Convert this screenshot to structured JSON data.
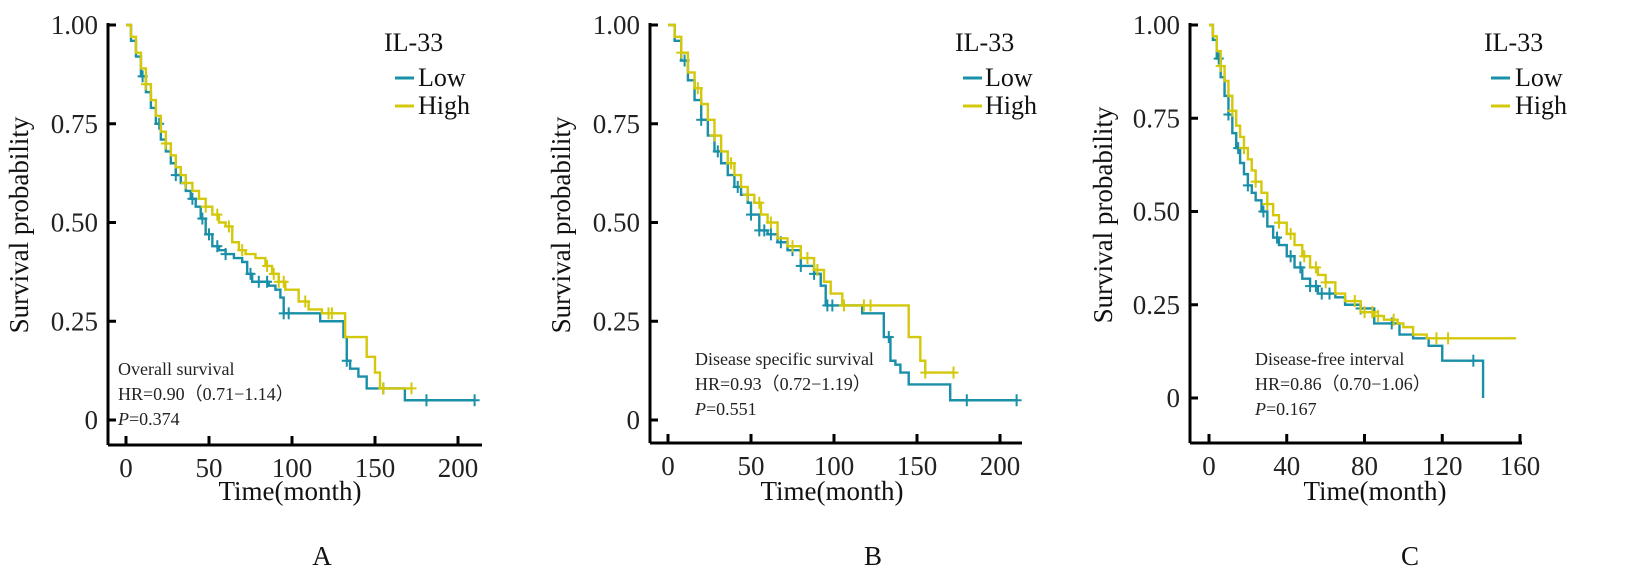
{
  "colors": {
    "low": "#1a8fa8",
    "high": "#d4c80a",
    "axis": "#000000",
    "text": "#111111"
  },
  "chart_data": [
    {
      "panel": "A",
      "type": "line",
      "subtype": "kaplan-meier",
      "title": "Overall survival",
      "xlabel": "Time(month)",
      "ylabel": "Survival probability",
      "xlim": [
        -10,
        212
      ],
      "ylim": [
        0,
        1
      ],
      "xticks": [
        0,
        50,
        100,
        150,
        200
      ],
      "xtick_labels": [
        "0",
        "50",
        "100",
        "150",
        "200"
      ],
      "yticks": [
        0,
        0.25,
        0.5,
        0.75,
        1.0
      ],
      "ytick_labels": [
        "0",
        "0.25",
        "0.50",
        "0.75",
        "1.00"
      ],
      "legend": {
        "title": "IL-33",
        "entries": [
          "Low",
          "High"
        ],
        "position": "top-right"
      },
      "annotation": {
        "line1": "Overall survival",
        "hr": "HR=0.90（0.71−1.14）",
        "p_label": "P",
        "p_value": "=0.374"
      },
      "grid": false,
      "series": [
        {
          "name": "Low",
          "x": [
            0,
            3,
            6,
            9,
            12,
            15,
            18,
            21,
            24,
            27,
            30,
            33,
            36,
            39,
            42,
            45,
            48,
            52,
            56,
            60,
            65,
            70,
            73,
            76,
            80,
            86,
            90,
            93,
            95,
            97,
            110,
            117,
            120,
            131,
            133,
            135,
            140,
            145,
            150,
            168,
            180,
            210
          ],
          "y": [
            1.0,
            0.96,
            0.92,
            0.87,
            0.83,
            0.79,
            0.75,
            0.71,
            0.68,
            0.65,
            0.62,
            0.6,
            0.58,
            0.56,
            0.54,
            0.51,
            0.47,
            0.44,
            0.43,
            0.42,
            0.41,
            0.4,
            0.37,
            0.35,
            0.35,
            0.34,
            0.33,
            0.31,
            0.27,
            0.27,
            0.27,
            0.25,
            0.25,
            0.21,
            0.15,
            0.13,
            0.11,
            0.08,
            0.08,
            0.05,
            0.05,
            0.05
          ],
          "censor_x": [
            10,
            20,
            30,
            40,
            46,
            50,
            55,
            60,
            75,
            80,
            85,
            95,
            98,
            133,
            155,
            181,
            210
          ]
        },
        {
          "name": "High",
          "x": [
            0,
            3,
            6,
            9,
            12,
            15,
            18,
            21,
            24,
            27,
            30,
            33,
            36,
            40,
            44,
            48,
            52,
            56,
            60,
            64,
            68,
            72,
            78,
            84,
            88,
            92,
            96,
            104,
            110,
            118,
            126,
            132,
            135,
            145,
            150,
            153,
            160,
            172
          ],
          "y": [
            1.0,
            0.97,
            0.93,
            0.89,
            0.85,
            0.81,
            0.77,
            0.73,
            0.7,
            0.67,
            0.64,
            0.62,
            0.6,
            0.58,
            0.56,
            0.54,
            0.52,
            0.5,
            0.49,
            0.45,
            0.43,
            0.42,
            0.41,
            0.39,
            0.37,
            0.35,
            0.33,
            0.3,
            0.28,
            0.27,
            0.27,
            0.21,
            0.21,
            0.16,
            0.12,
            0.08,
            0.08,
            0.08
          ],
          "censor_x": [
            12,
            24,
            36,
            48,
            55,
            62,
            70,
            85,
            89,
            92,
            95,
            108,
            122,
            124,
            155,
            172
          ]
        }
      ]
    },
    {
      "panel": "B",
      "type": "line",
      "subtype": "kaplan-meier",
      "title": "Disease specific survival",
      "xlabel": "Time(month)",
      "ylabel": "Survival probability",
      "xlim": [
        -10,
        212
      ],
      "ylim": [
        0,
        1
      ],
      "xticks": [
        0,
        50,
        100,
        150,
        200
      ],
      "xtick_labels": [
        "0",
        "50",
        "100",
        "150",
        "200"
      ],
      "yticks": [
        0,
        0.25,
        0.5,
        0.75,
        1.0
      ],
      "ytick_labels": [
        "0",
        "0.25",
        "0.50",
        "0.75",
        "1.00"
      ],
      "legend": {
        "title": "IL-33",
        "entries": [
          "Low",
          "High"
        ],
        "position": "top-right"
      },
      "annotation": {
        "line1": "Disease specific survival",
        "hr": "HR=0.93（0.72−1.19）",
        "p_label": "P",
        "p_value": "=0.551"
      },
      "grid": false,
      "series": [
        {
          "name": "Low",
          "x": [
            0,
            4,
            8,
            12,
            16,
            20,
            24,
            28,
            32,
            36,
            40,
            44,
            48,
            50,
            55,
            60,
            66,
            72,
            80,
            88,
            92,
            95,
            100,
            117,
            130,
            134,
            137,
            140,
            145,
            170,
            180,
            210
          ],
          "y": [
            1.0,
            0.96,
            0.91,
            0.86,
            0.81,
            0.76,
            0.72,
            0.68,
            0.65,
            0.62,
            0.59,
            0.57,
            0.55,
            0.52,
            0.48,
            0.47,
            0.45,
            0.43,
            0.39,
            0.37,
            0.34,
            0.29,
            0.29,
            0.27,
            0.21,
            0.15,
            0.14,
            0.12,
            0.09,
            0.05,
            0.05,
            0.05
          ],
          "censor_x": [
            10,
            20,
            30,
            42,
            50,
            55,
            58,
            62,
            68,
            75,
            80,
            88,
            96,
            99,
            133,
            180,
            210
          ]
        },
        {
          "name": "High",
          "x": [
            0,
            4,
            8,
            12,
            16,
            20,
            24,
            28,
            32,
            36,
            40,
            44,
            48,
            52,
            56,
            60,
            66,
            72,
            80,
            88,
            94,
            98,
            105,
            125,
            145,
            152,
            155,
            172
          ],
          "y": [
            1.0,
            0.97,
            0.93,
            0.88,
            0.84,
            0.8,
            0.76,
            0.72,
            0.68,
            0.65,
            0.62,
            0.59,
            0.57,
            0.55,
            0.52,
            0.5,
            0.46,
            0.44,
            0.41,
            0.38,
            0.35,
            0.32,
            0.29,
            0.29,
            0.21,
            0.15,
            0.12,
            0.12
          ],
          "censor_x": [
            8,
            18,
            28,
            38,
            48,
            55,
            62,
            75,
            84,
            90,
            106,
            118,
            122,
            155,
            172
          ]
        }
      ]
    },
    {
      "panel": "C",
      "type": "line",
      "subtype": "kaplan-meier",
      "title": "Disease-free interval",
      "xlabel": "Time(month)",
      "ylabel": "Survival probability",
      "xlim": [
        -10,
        160
      ],
      "ylim": [
        0,
        1
      ],
      "xticks": [
        0,
        40,
        80,
        120,
        160
      ],
      "xtick_labels": [
        "0",
        "40",
        "80",
        "120",
        "160"
      ],
      "yticks": [
        0,
        0.25,
        0.5,
        0.75,
        1.0
      ],
      "ytick_labels": [
        "0",
        "0.25",
        "0.50",
        "0.75",
        "1.00"
      ],
      "legend": {
        "title": "IL-33",
        "entries": [
          "Low",
          "High"
        ],
        "position": "top-right"
      },
      "annotation": {
        "line1": "Disease-free interval",
        "hr": "HR=0.86（0.70−1.06）",
        "p_label": "P",
        "p_value": "=0.167"
      },
      "grid": false,
      "series": [
        {
          "name": "Low",
          "x": [
            0,
            2,
            4,
            6,
            8,
            10,
            12,
            14,
            16,
            18,
            20,
            22,
            24,
            27,
            30,
            33,
            36,
            40,
            44,
            48,
            52,
            56,
            60,
            65,
            70,
            78,
            85,
            92,
            98,
            105,
            113,
            120,
            128,
            134,
            140,
            141
          ],
          "y": [
            1.0,
            0.96,
            0.91,
            0.86,
            0.81,
            0.76,
            0.71,
            0.67,
            0.63,
            0.6,
            0.57,
            0.55,
            0.53,
            0.5,
            0.46,
            0.43,
            0.41,
            0.38,
            0.35,
            0.32,
            0.3,
            0.28,
            0.28,
            0.27,
            0.25,
            0.24,
            0.2,
            0.2,
            0.17,
            0.16,
            0.14,
            0.1,
            0.1,
            0.1,
            0.1,
            0.0
          ],
          "censor_x": [
            5,
            10,
            15,
            20,
            28,
            35,
            42,
            47,
            52,
            55,
            58,
            62,
            78,
            94,
            136
          ]
        },
        {
          "name": "High",
          "x": [
            0,
            2,
            4,
            6,
            8,
            10,
            12,
            14,
            16,
            18,
            20,
            22,
            24,
            27,
            30,
            33,
            36,
            40,
            44,
            48,
            52,
            56,
            60,
            65,
            70,
            78,
            85,
            90,
            97,
            100,
            105,
            112,
            118,
            125,
            158
          ],
          "y": [
            1.0,
            0.97,
            0.93,
            0.89,
            0.85,
            0.81,
            0.77,
            0.73,
            0.7,
            0.67,
            0.64,
            0.61,
            0.58,
            0.55,
            0.52,
            0.49,
            0.47,
            0.44,
            0.41,
            0.38,
            0.35,
            0.33,
            0.31,
            0.28,
            0.26,
            0.23,
            0.22,
            0.21,
            0.2,
            0.19,
            0.17,
            0.16,
            0.16,
            0.16,
            0.16
          ],
          "censor_x": [
            6,
            12,
            18,
            24,
            30,
            36,
            42,
            49,
            55,
            60,
            75,
            80,
            84,
            87,
            95,
            117,
            123
          ]
        }
      ]
    }
  ]
}
